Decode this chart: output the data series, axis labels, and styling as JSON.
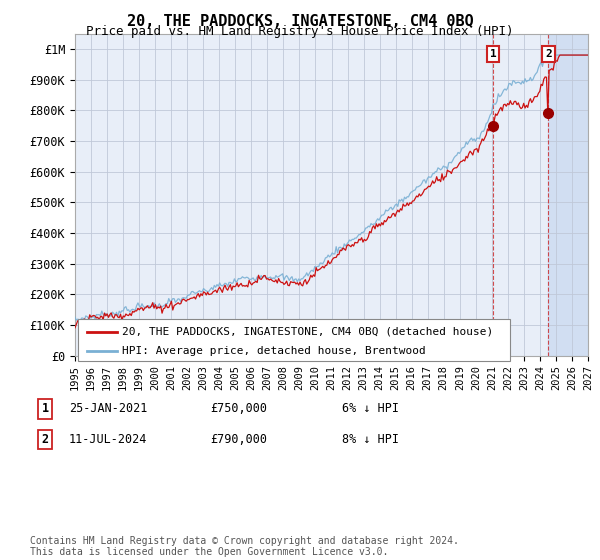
{
  "title": "20, THE PADDOCKS, INGATESTONE, CM4 0BQ",
  "subtitle": "Price paid vs. HM Land Registry's House Price Index (HPI)",
  "xlim_start": 1995.0,
  "xlim_end": 2027.0,
  "ylim": [
    0,
    1050000
  ],
  "yticks": [
    0,
    100000,
    200000,
    300000,
    400000,
    500000,
    600000,
    700000,
    800000,
    900000,
    1000000
  ],
  "ytick_labels": [
    "£0",
    "£100K",
    "£200K",
    "£300K",
    "£400K",
    "£500K",
    "£600K",
    "£700K",
    "£800K",
    "£900K",
    "£1M"
  ],
  "xticks": [
    1995,
    1996,
    1997,
    1998,
    1999,
    2000,
    2001,
    2002,
    2003,
    2004,
    2005,
    2006,
    2007,
    2008,
    2009,
    2010,
    2011,
    2012,
    2013,
    2014,
    2015,
    2016,
    2017,
    2018,
    2019,
    2020,
    2021,
    2022,
    2023,
    2024,
    2025,
    2026,
    2027
  ],
  "sale1_x": 2021.07,
  "sale1_y": 750000,
  "sale2_x": 2024.53,
  "sale2_y": 790000,
  "hpi_color": "#7ab0d4",
  "price_color": "#cc1111",
  "marker_color": "#990000",
  "vline_color": "#cc2222",
  "shade_color": "#c8d8f0",
  "bg_color": "#e8eef8",
  "grid_color": "#c0c8d8",
  "legend_label1": "20, THE PADDOCKS, INGATESTONE, CM4 0BQ (detached house)",
  "legend_label2": "HPI: Average price, detached house, Brentwood",
  "table_row1": [
    "1",
    "25-JAN-2021",
    "£750,000",
    "6% ↓ HPI"
  ],
  "table_row2": [
    "2",
    "11-JUL-2024",
    "£790,000",
    "8% ↓ HPI"
  ],
  "footnote": "Contains HM Land Registry data © Crown copyright and database right 2024.\nThis data is licensed under the Open Government Licence v3.0."
}
